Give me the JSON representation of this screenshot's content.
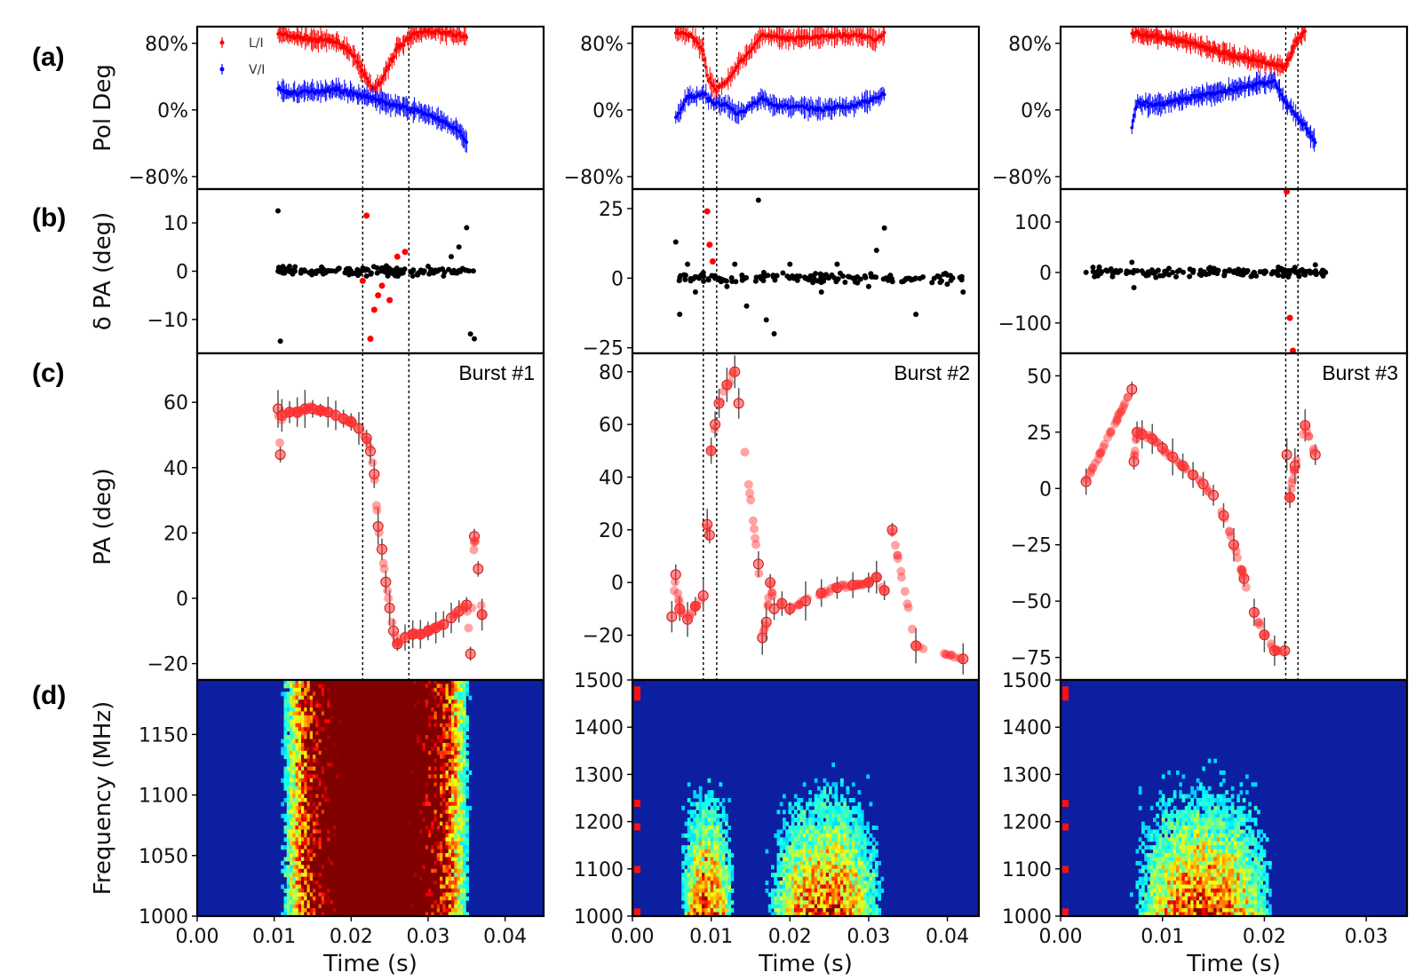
{
  "figure": {
    "panel_labels": [
      "(a)",
      "(b)",
      "(c)",
      "(d)"
    ],
    "colors": {
      "li": "#ff0000",
      "vi": "#0000ff",
      "dpa": "#000000",
      "dpa_outlier": "#ff0000",
      "pa_marker": "#ff3333",
      "err": "#555555"
    }
  },
  "chart_data": [
    {
      "type": "scatter",
      "panel": "(a)",
      "burst": 1,
      "ylabel": "Pol Deg",
      "ylim": [
        -95,
        100
      ],
      "xlim": [
        0,
        0.045
      ],
      "yticks": [
        "80%",
        "0%",
        "−80%"
      ],
      "ytick_values": [
        80,
        0,
        -80
      ],
      "legend": {
        "position": "upper-left",
        "entries": [
          "L/I",
          "V/I"
        ]
      },
      "series": [
        {
          "name": "L/I",
          "x": [
            0.0105,
            0.012,
            0.015,
            0.018,
            0.02,
            0.0215,
            0.0225,
            0.023,
            0.024,
            0.026,
            0.028,
            0.03,
            0.032,
            0.034,
            0.035
          ],
          "y": [
            92,
            88,
            85,
            82,
            70,
            45,
            30,
            25,
            35,
            75,
            90,
            95,
            92,
            90,
            88
          ]
        },
        {
          "name": "V/I",
          "x": [
            0.0105,
            0.012,
            0.015,
            0.018,
            0.02,
            0.0225,
            0.024,
            0.026,
            0.028,
            0.03,
            0.032,
            0.034,
            0.035
          ],
          "y": [
            25,
            20,
            22,
            25,
            20,
            15,
            10,
            5,
            0,
            -5,
            -15,
            -25,
            -40
          ]
        }
      ],
      "vlines": [
        0.0215,
        0.0275
      ]
    },
    {
      "type": "scatter",
      "panel": "(a)",
      "burst": 2,
      "ylabel": "",
      "ylim": [
        -95,
        100
      ],
      "xlim": [
        0,
        0.044
      ],
      "yticks": [
        "80%",
        "0%",
        "−80%"
      ],
      "ytick_values": [
        80,
        0,
        -80
      ],
      "series": [
        {
          "name": "L/I",
          "x": [
            0.0055,
            0.007,
            0.008,
            0.009,
            0.0095,
            0.0105,
            0.012,
            0.0135,
            0.0165,
            0.018,
            0.02,
            0.024,
            0.028,
            0.031,
            0.032
          ],
          "y": [
            95,
            90,
            85,
            70,
            40,
            25,
            35,
            55,
            90,
            88,
            85,
            88,
            90,
            85,
            92
          ]
        },
        {
          "name": "V/I",
          "x": [
            0.0055,
            0.007,
            0.009,
            0.01,
            0.012,
            0.0135,
            0.0165,
            0.018,
            0.02,
            0.024,
            0.028,
            0.031,
            0.032
          ],
          "y": [
            -10,
            15,
            20,
            10,
            5,
            -5,
            15,
            5,
            5,
            0,
            5,
            15,
            20
          ]
        }
      ],
      "vlines": [
        0.009,
        0.0107
      ]
    },
    {
      "type": "scatter",
      "panel": "(a)",
      "burst": 3,
      "ylabel": "",
      "ylim": [
        -95,
        100
      ],
      "xlim": [
        0,
        0.034
      ],
      "yticks": [
        "80%",
        "0%",
        "−80%"
      ],
      "ytick_values": [
        80,
        0,
        -80
      ],
      "series": [
        {
          "name": "L/I",
          "x": [
            0.007,
            0.009,
            0.011,
            0.013,
            0.015,
            0.017,
            0.019,
            0.021,
            0.022,
            0.023,
            0.024
          ],
          "y": [
            92,
            88,
            85,
            80,
            72,
            65,
            60,
            55,
            50,
            80,
            95
          ]
        },
        {
          "name": "V/I",
          "x": [
            0.007,
            0.0075,
            0.009,
            0.011,
            0.013,
            0.015,
            0.017,
            0.019,
            0.021,
            0.022,
            0.023,
            0.024,
            0.025
          ],
          "y": [
            -20,
            10,
            5,
            10,
            15,
            20,
            25,
            30,
            35,
            10,
            -5,
            -20,
            -40
          ]
        }
      ],
      "vlines": [
        0.0221,
        0.0233
      ]
    },
    {
      "type": "scatter",
      "panel": "(b)",
      "burst": 1,
      "ylabel": "δ PA (deg)",
      "ylim": [
        -17,
        17
      ],
      "xlim": [
        0,
        0.045
      ],
      "yticks": [
        "10",
        "0",
        "−10"
      ],
      "ytick_values": [
        10,
        0,
        -10
      ],
      "series": [
        {
          "name": "",
          "x": [
            0.0105,
            0.0108,
            0.012,
            0.014,
            0.016,
            0.018,
            0.02,
            0.022,
            0.026,
            0.028,
            0.03,
            0.032,
            0.033,
            0.034,
            0.035,
            0.0355,
            0.036
          ],
          "y": [
            12.5,
            -14.5,
            1,
            0,
            0,
            0,
            0,
            -1,
            0,
            -1,
            1,
            -1,
            3,
            5,
            9,
            -13,
            -14
          ]
        },
        {
          "name": "",
          "x": [
            0.0215,
            0.022,
            0.0225,
            0.023,
            0.0235,
            0.024,
            0.025,
            0.026,
            0.027
          ],
          "y": [
            -2,
            11.5,
            -14,
            -8,
            -5,
            -3,
            -6,
            3,
            4
          ]
        }
      ],
      "vlines": [
        0.0215,
        0.0275
      ]
    },
    {
      "type": "scatter",
      "panel": "(b)",
      "burst": 2,
      "ylabel": "",
      "ylim": [
        -27,
        32
      ],
      "xlim": [
        0,
        0.044
      ],
      "yticks": [
        "25",
        "0",
        "−25"
      ],
      "ytick_values": [
        25,
        0,
        -25
      ],
      "series": [
        {
          "name": "",
          "x": [
            0.0055,
            0.006,
            0.007,
            0.008,
            0.009,
            0.011,
            0.012,
            0.013,
            0.0145,
            0.016,
            0.017,
            0.018,
            0.02,
            0.022,
            0.024,
            0.026,
            0.028,
            0.03,
            0.031,
            0.032,
            0.036,
            0.042
          ],
          "y": [
            13,
            -13,
            5,
            -5,
            2,
            0,
            -3,
            5,
            -10,
            28,
            -15,
            -20,
            5,
            0,
            -5,
            5,
            0,
            -3,
            10,
            18,
            -13,
            -5
          ]
        },
        {
          "name": "",
          "x": [
            0.0095,
            0.0098,
            0.0102
          ],
          "y": [
            24,
            12,
            6
          ]
        }
      ],
      "vlines": [
        0.009,
        0.0107
      ]
    },
    {
      "type": "scatter",
      "panel": "(b)",
      "burst": 3,
      "ylabel": "",
      "ylim": [
        -160,
        165
      ],
      "xlim": [
        0,
        0.034
      ],
      "yticks": [
        "100",
        "0",
        "−100"
      ],
      "ytick_values": [
        100,
        0,
        -100
      ],
      "series": [
        {
          "name": "",
          "x": [
            0.0025,
            0.007,
            0.0072,
            0.009,
            0.011,
            0.013,
            0.015,
            0.017,
            0.019,
            0.021,
            0.022,
            0.023,
            0.024,
            0.025,
            0.026
          ],
          "y": [
            0,
            20,
            -30,
            0,
            0,
            0,
            0,
            0,
            0,
            0,
            5,
            10,
            -5,
            15,
            0
          ]
        },
        {
          "name": "",
          "x": [
            0.0222,
            0.0225,
            0.0228
          ],
          "y": [
            160,
            -90,
            -155
          ]
        }
      ],
      "vlines": [
        0.0221,
        0.0233
      ]
    },
    {
      "type": "scatter",
      "panel": "(c)",
      "burst": 1,
      "annotation": "Burst #1",
      "ylabel": "PA (deg)",
      "ylim": [
        -25,
        75
      ],
      "xlim": [
        0,
        0.045
      ],
      "yticks": [
        "60",
        "40",
        "20",
        "0",
        "−20"
      ],
      "ytick_values": [
        60,
        40,
        20,
        0,
        -20
      ],
      "series": [
        {
          "name": "",
          "x": [
            0.0105,
            0.0108,
            0.011,
            0.012,
            0.013,
            0.014,
            0.015,
            0.016,
            0.017,
            0.018,
            0.019,
            0.02,
            0.021,
            0.022,
            0.0225,
            0.023,
            0.0235,
            0.024,
            0.0245,
            0.025,
            0.0255,
            0.026,
            0.027,
            0.028,
            0.029,
            0.03,
            0.031,
            0.032,
            0.033,
            0.034,
            0.035,
            0.0355,
            0.036,
            0.0365,
            0.037
          ],
          "y": [
            58,
            44,
            56,
            57,
            57,
            58,
            58,
            57.5,
            57,
            56,
            55,
            54,
            52,
            49,
            45,
            38,
            22,
            15,
            5,
            -3,
            -10,
            -14,
            -12,
            -11,
            -11,
            -10,
            -9,
            -8,
            -6,
            -4,
            -2,
            -17,
            19,
            9,
            -5
          ]
        }
      ],
      "vlines": [
        0.0215,
        0.0275
      ]
    },
    {
      "type": "scatter",
      "panel": "(c)",
      "burst": 2,
      "annotation": "Burst #2",
      "ylabel": "",
      "ylim": [
        -37,
        87
      ],
      "xlim": [
        0,
        0.044
      ],
      "yticks": [
        "80",
        "60",
        "40",
        "20",
        "0",
        "−20"
      ],
      "ytick_values": [
        80,
        60,
        40,
        20,
        0,
        -20
      ],
      "series": [
        {
          "name": "",
          "x": [
            0.005,
            0.0055,
            0.006,
            0.007,
            0.008,
            0.009,
            0.0095,
            0.0098,
            0.01,
            0.0105,
            0.011,
            0.012,
            0.013,
            0.0135,
            0.016,
            0.0165,
            0.017,
            0.0175,
            0.018,
            0.019,
            0.02,
            0.022,
            0.024,
            0.026,
            0.028,
            0.03,
            0.031,
            0.032,
            0.033,
            0.036,
            0.042
          ],
          "y": [
            -13,
            3,
            -10,
            -14,
            -9,
            -5,
            22,
            18,
            50,
            60,
            68,
            75,
            80,
            68,
            7,
            -21,
            -15,
            0,
            -10,
            -8,
            -10,
            -7,
            -4,
            -2,
            -1,
            0,
            2,
            -3,
            20,
            -24,
            -29
          ]
        }
      ],
      "vlines": [
        0.009,
        0.0107
      ]
    },
    {
      "type": "scatter",
      "panel": "(c)",
      "burst": 3,
      "annotation": "Burst #3",
      "ylabel": "",
      "ylim": [
        -85,
        60
      ],
      "xlim": [
        0,
        0.034
      ],
      "yticks": [
        "50",
        "25",
        "0",
        "−25",
        "−50",
        "−75"
      ],
      "ytick_values": [
        50,
        25,
        0,
        -25,
        -50,
        -75
      ],
      "series": [
        {
          "name": "",
          "x": [
            0.0025,
            0.007,
            0.0072,
            0.0075,
            0.008,
            0.009,
            0.01,
            0.011,
            0.012,
            0.013,
            0.014,
            0.015,
            0.016,
            0.017,
            0.018,
            0.019,
            0.02,
            0.021,
            0.022,
            0.0222,
            0.0225,
            0.023,
            0.024,
            0.025
          ],
          "y": [
            3,
            44,
            12,
            25,
            24,
            22,
            18,
            14,
            10,
            6,
            2,
            -3,
            -12,
            -25,
            -40,
            -55,
            -65,
            -72,
            -72,
            15,
            -4,
            10,
            28,
            15
          ]
        }
      ],
      "vlines": [
        0.0221,
        0.0233
      ]
    },
    {
      "type": "heatmap",
      "panel": "(d)",
      "burst": 1,
      "xlabel": "Time (s)",
      "ylabel": "Frequency (MHz)",
      "ylim": [
        1000,
        1195
      ],
      "xlim": [
        0,
        0.045
      ],
      "xticks": [
        "0.00",
        "0.01",
        "0.02",
        "0.03",
        "0.04"
      ],
      "xtick_values": [
        0,
        0.01,
        0.02,
        0.03,
        0.04
      ],
      "yticks": [
        "1150",
        "1100",
        "1050",
        "1000"
      ],
      "ytick_values": [
        1150,
        1100,
        1050,
        1000
      ],
      "emission_windows": [
        [
          0.0115,
          0.035
        ]
      ]
    },
    {
      "type": "heatmap",
      "panel": "(d)",
      "burst": 2,
      "xlabel": "Time (s)",
      "ylabel": "",
      "ylim": [
        1000,
        1500
      ],
      "xlim": [
        0,
        0.044
      ],
      "xticks": [
        "0.00",
        "0.01",
        "0.02",
        "0.03",
        "0.04"
      ],
      "xtick_values": [
        0,
        0.01,
        0.02,
        0.03,
        0.04
      ],
      "yticks": [
        "1500",
        "1400",
        "1300",
        "1200",
        "1100",
        "1000"
      ],
      "ytick_values": [
        1500,
        1400,
        1300,
        1200,
        1100,
        1000
      ],
      "emission_windows": [
        [
          0.006,
          0.013
        ],
        [
          0.017,
          0.032
        ]
      ]
    },
    {
      "type": "heatmap",
      "panel": "(d)",
      "burst": 3,
      "xlabel": "Time (s)",
      "ylabel": "",
      "ylim": [
        1000,
        1500
      ],
      "xlim": [
        0,
        0.034
      ],
      "xticks": [
        "0.00",
        "0.01",
        "0.02",
        "0.03"
      ],
      "xtick_values": [
        0,
        0.01,
        0.02,
        0.03
      ],
      "yticks": [
        "1500",
        "1400",
        "1300",
        "1200",
        "1100",
        "1000"
      ],
      "ytick_values": [
        1500,
        1400,
        1300,
        1200,
        1100,
        1000
      ],
      "emission_windows": [
        [
          0.007,
          0.021
        ]
      ]
    }
  ]
}
